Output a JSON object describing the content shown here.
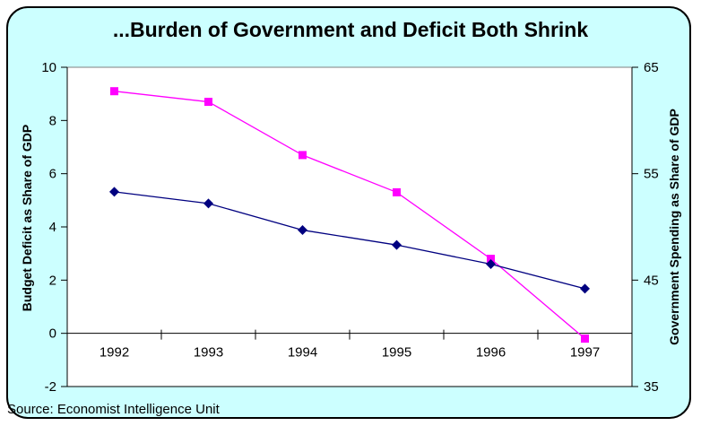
{
  "title": "...Burden of Government and Deficit Both Shrink",
  "source_note": "Source: Economist Intelligence Unit",
  "series_labels": {
    "budget_deficit": "Budget Deficit",
    "government_spending": "Government Spending"
  },
  "colors": {
    "slide_background": "#ccffff",
    "plot_background": "#ffffff",
    "plot_frame": "#7f7f7f",
    "axis_line": "#000000",
    "budget_deficit": "#ff00ff",
    "government_spending": "#000080",
    "text": "#000000"
  },
  "chart_data": {
    "type": "line",
    "title": "...Burden of Government and Deficit Both Shrink",
    "categories": [
      "1992",
      "1993",
      "1994",
      "1995",
      "1996",
      "1997"
    ],
    "series": [
      {
        "name": "Budget Deficit",
        "axis": "left",
        "color": "#ff00ff",
        "marker": "square",
        "values": [
          9.1,
          8.7,
          6.7,
          5.3,
          2.8,
          -0.2
        ]
      },
      {
        "name": "Government Spending",
        "axis": "right",
        "color": "#000080",
        "marker": "diamond",
        "values": [
          53.3,
          52.2,
          49.7,
          48.3,
          46.5,
          44.2
        ]
      }
    ],
    "left_axis": {
      "label": "Budget Deficit as Share of GDP",
      "min": -2,
      "max": 10,
      "ticks": [
        10,
        8,
        6,
        4,
        2,
        0,
        -2
      ]
    },
    "right_axis": {
      "label": "Government Spending as Share of GDP",
      "min": 35,
      "max": 65,
      "ticks": [
        65,
        55,
        45,
        35
      ]
    },
    "category_axis_at_value": 0,
    "grid": false,
    "legend_position": "none (inline text labels on chart)"
  }
}
